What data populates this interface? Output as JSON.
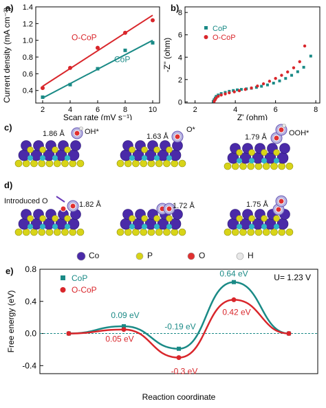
{
  "colors": {
    "cop": "#1a8a86",
    "ocop": "#d9262b",
    "co": "#4a2aa8",
    "p": "#d8d418",
    "o": "#e03030",
    "h": "#e8e8e8"
  },
  "chart_data": [
    {
      "type": "scatter",
      "panel_label": "a)",
      "xlabel": "Scan rate (mV s⁻¹)",
      "ylabel": "Current density (mA cm⁻²)",
      "xlim": [
        1.5,
        10.5
      ],
      "ylim": [
        0.25,
        1.4
      ],
      "xticks": [
        "2",
        "4",
        "6",
        "8",
        "10"
      ],
      "yticks": [
        "0.4",
        "0.6",
        "0.8",
        "1.0",
        "1.2",
        "1.4"
      ],
      "series": [
        {
          "name": "O-CoP",
          "x": [
            2,
            4,
            6,
            8,
            10
          ],
          "y": [
            0.43,
            0.67,
            0.91,
            1.09,
            1.24
          ],
          "fit": [
            0.45,
            1.3
          ]
        },
        {
          "name": "CoP",
          "x": [
            2,
            4,
            6,
            8,
            10
          ],
          "y": [
            0.32,
            0.47,
            0.66,
            0.88,
            0.97
          ],
          "fit": [
            0.31,
            1.0
          ]
        }
      ]
    },
    {
      "type": "scatter",
      "panel_label": "b)",
      "xlabel": "Z' (ohm)",
      "ylabel": "-Z'' (ohm)",
      "xlim": [
        1.5,
        8.2
      ],
      "ylim": [
        -0.1,
        8.5
      ],
      "xticks": [
        "2",
        "4",
        "6",
        "8"
      ],
      "yticks": [
        "0",
        "2",
        "4",
        "6",
        "8"
      ],
      "series": [
        {
          "name": "CoP",
          "points": [
            [
              2.9,
              0.05
            ],
            [
              2.95,
              0.2
            ],
            [
              3.0,
              0.35
            ],
            [
              3.05,
              0.5
            ],
            [
              3.15,
              0.62
            ],
            [
              3.3,
              0.75
            ],
            [
              3.5,
              0.85
            ],
            [
              3.7,
              0.95
            ],
            [
              3.9,
              1.02
            ],
            [
              4.1,
              1.08
            ],
            [
              4.3,
              1.12
            ],
            [
              4.55,
              1.17
            ],
            [
              4.8,
              1.22
            ],
            [
              5.05,
              1.3
            ],
            [
              5.3,
              1.4
            ],
            [
              5.6,
              1.52
            ],
            [
              5.9,
              1.68
            ],
            [
              6.2,
              1.88
            ],
            [
              6.5,
              2.1
            ],
            [
              6.8,
              2.38
            ],
            [
              7.1,
              2.7
            ],
            [
              7.4,
              3.1
            ],
            [
              7.75,
              4.1
            ]
          ]
        },
        {
          "name": "O-CoP",
          "points": [
            [
              2.95,
              0.05
            ],
            [
              3.0,
              0.2
            ],
            [
              3.05,
              0.35
            ],
            [
              3.15,
              0.5
            ],
            [
              3.3,
              0.62
            ],
            [
              3.5,
              0.72
            ],
            [
              3.7,
              0.82
            ],
            [
              3.95,
              0.9
            ],
            [
              4.2,
              1.0
            ],
            [
              4.5,
              1.12
            ],
            [
              4.8,
              1.25
            ],
            [
              5.1,
              1.42
            ],
            [
              5.4,
              1.62
            ],
            [
              5.7,
              1.85
            ],
            [
              6.0,
              2.1
            ],
            [
              6.3,
              2.38
            ],
            [
              6.6,
              2.68
            ],
            [
              6.9,
              3.05
            ],
            [
              7.2,
              3.6
            ],
            [
              7.45,
              5.0
            ]
          ]
        }
      ]
    },
    {
      "type": "line",
      "panel_label": "e)",
      "xlabel": "Reaction coordinate",
      "ylabel": "Free energy (eV)",
      "ylim": [
        -0.5,
        0.8
      ],
      "yticks": [
        "-0.4",
        "0.0",
        "0.4",
        "0.8"
      ],
      "annotation": "U= 1.23 V",
      "x": [
        0,
        1,
        2,
        3,
        4
      ],
      "series": [
        {
          "name": "CoP",
          "values": [
            0,
            0.09,
            -0.19,
            0.64,
            0
          ]
        },
        {
          "name": "O-CoP",
          "values": [
            0,
            0.05,
            -0.3,
            0.42,
            0
          ]
        }
      ],
      "labels": {
        "cop": [
          "0.09 eV",
          "-0.19 eV",
          "0.64 eV"
        ],
        "ocop": [
          "0.05 eV",
          "-0.3 eV",
          "0.42 eV"
        ]
      }
    }
  ],
  "panel_c": {
    "label": "c)",
    "dist1": "1.86 Å",
    "ads1": "OH*",
    "dist2": "1.63 Å",
    "ads2": "O*",
    "dist3": "1.79 Å",
    "ads3": "OOH*"
  },
  "panel_d": {
    "label": "d)",
    "introduced": "Introduced O",
    "dist1": "1.82 Å",
    "dist2": "1.72 Å",
    "dist3": "1.75 Å"
  },
  "atom_legend": [
    "Co",
    "P",
    "O",
    "H"
  ]
}
